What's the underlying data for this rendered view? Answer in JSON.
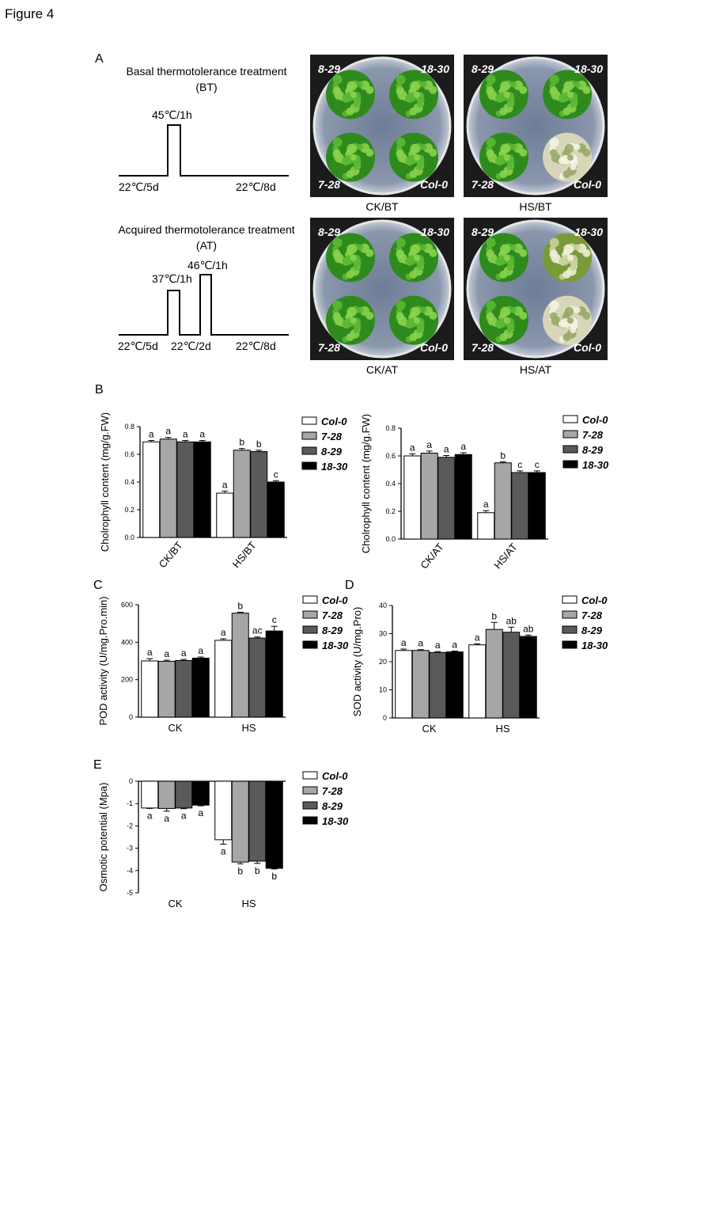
{
  "figure_title": "Figure 4",
  "panel_a": {
    "letter": "A",
    "bt": {
      "title_line1": "Basal thermotolerance treatment",
      "title_line2": "(BT)",
      "pulse_label": "45℃/1h",
      "pre_label": "22℃/5d",
      "post_label": "22℃/8d"
    },
    "at": {
      "title_line1": "Acquired thermotolerance treatment",
      "title_line2": "(AT)",
      "pulse1_label": "37℃/1h",
      "pulse2_label": "46℃/1h",
      "pre_label": "22℃/5d",
      "mid_label": "22℃/2d",
      "post_label": "22℃/8d"
    },
    "plates": [
      {
        "caption": "CK/BT",
        "tl": "8-29",
        "tr": "18-30",
        "bl": "7-28",
        "br": "Col-0",
        "status": [
          "healthy",
          "healthy",
          "healthy",
          "healthy"
        ]
      },
      {
        "caption": "HS/BT",
        "tl": "8-29",
        "tr": "18-30",
        "bl": "7-28",
        "br": "Col-0",
        "status": [
          "healthy",
          "healthy",
          "healthy",
          "bleached"
        ]
      },
      {
        "caption": "CK/AT",
        "tl": "8-29",
        "tr": "18-30",
        "bl": "7-28",
        "br": "Col-0",
        "status": [
          "healthy",
          "healthy",
          "healthy",
          "healthy"
        ]
      },
      {
        "caption": "HS/AT",
        "tl": "8-29",
        "tr": "18-30",
        "bl": "7-28",
        "br": "Col-0",
        "status": [
          "healthy",
          "partial",
          "healthy",
          "bleached"
        ]
      }
    ]
  },
  "legend": {
    "entries": [
      "Col-0",
      "7-28",
      "8-29",
      "18-30"
    ],
    "colors": [
      "#ffffff",
      "#a6a6a6",
      "#5a5a5a",
      "#000000"
    ]
  },
  "chart_data": [
    {
      "panel": "B",
      "type": "bar",
      "ylabel": "Cholrophyll content (mg/g.FW)",
      "categories": [
        "CK/BT",
        "HS/BT"
      ],
      "ylim": [
        0,
        0.8
      ],
      "yticks": [
        "0.0",
        "0.2",
        "0.4",
        "0.6",
        "0.8"
      ],
      "rotate_xticks": true,
      "series": [
        {
          "name": "Col-0",
          "values": [
            0.69,
            0.32
          ],
          "err": [
            0.01,
            0.015
          ],
          "letters": [
            "a",
            "a"
          ]
        },
        {
          "name": "7-28",
          "values": [
            0.71,
            0.63
          ],
          "err": [
            0.012,
            0.012
          ],
          "letters": [
            "a",
            "b"
          ]
        },
        {
          "name": "8-29",
          "values": [
            0.69,
            0.62
          ],
          "err": [
            0.01,
            0.01
          ],
          "letters": [
            "a",
            "b"
          ]
        },
        {
          "name": "18-30",
          "values": [
            0.69,
            0.4
          ],
          "err": [
            0.01,
            0.01
          ],
          "letters": [
            "a",
            "c"
          ]
        }
      ]
    },
    {
      "panel": "",
      "type": "bar",
      "ylabel": "Cholrophyll content (mg/g.FW)",
      "categories": [
        "CK/AT",
        "HS/AT"
      ],
      "ylim": [
        0,
        0.8
      ],
      "yticks": [
        "0.0",
        "0.2",
        "0.4",
        "0.6",
        "0.8"
      ],
      "rotate_xticks": true,
      "series": [
        {
          "name": "Col-0",
          "values": [
            0.6,
            0.19
          ],
          "err": [
            0.015,
            0.015
          ],
          "letters": [
            "a",
            "a"
          ]
        },
        {
          "name": "7-28",
          "values": [
            0.62,
            0.55
          ],
          "err": [
            0.015,
            0.008
          ],
          "letters": [
            "a",
            "b"
          ]
        },
        {
          "name": "8-29",
          "values": [
            0.59,
            0.48
          ],
          "err": [
            0.013,
            0.012
          ],
          "letters": [
            "a",
            "c"
          ]
        },
        {
          "name": "18-30",
          "values": [
            0.61,
            0.48
          ],
          "err": [
            0.013,
            0.012
          ],
          "letters": [
            "a",
            "c"
          ]
        }
      ]
    },
    {
      "panel": "C",
      "type": "bar",
      "ylabel": "POD activity (U/mg.Pro.min)",
      "categories": [
        "CK",
        "HS"
      ],
      "ylim": [
        0,
        600
      ],
      "yticks": [
        "0",
        "200",
        "400",
        "600"
      ],
      "rotate_xticks": false,
      "series": [
        {
          "name": "Col-0",
          "values": [
            300,
            410
          ],
          "err": [
            12,
            8
          ],
          "letters": [
            "a",
            "a"
          ]
        },
        {
          "name": "7-28",
          "values": [
            298,
            555
          ],
          "err": [
            6,
            5
          ],
          "letters": [
            "a",
            "b"
          ]
        },
        {
          "name": "8-29",
          "values": [
            302,
            422
          ],
          "err": [
            6,
            6
          ],
          "letters": [
            "a",
            "ac"
          ]
        },
        {
          "name": "18-30",
          "values": [
            315,
            460
          ],
          "err": [
            6,
            25
          ],
          "letters": [
            "a",
            "c"
          ]
        }
      ]
    },
    {
      "panel": "D",
      "type": "bar",
      "ylabel": "SOD activity (U/mg.Pro)",
      "categories": [
        "CK",
        "HS"
      ],
      "ylim": [
        0,
        40
      ],
      "yticks": [
        "0",
        "10",
        "20",
        "30",
        "40"
      ],
      "rotate_xticks": false,
      "series": [
        {
          "name": "Col-0",
          "values": [
            24,
            26
          ],
          "err": [
            0.5,
            0.4
          ],
          "letters": [
            "a",
            "a"
          ]
        },
        {
          "name": "7-28",
          "values": [
            24,
            31.5
          ],
          "err": [
            0.3,
            2.5
          ],
          "letters": [
            "a",
            "b"
          ]
        },
        {
          "name": "8-29",
          "values": [
            23.3,
            30.5
          ],
          "err": [
            0.3,
            1.8
          ],
          "letters": [
            "a",
            "ab"
          ]
        },
        {
          "name": "18-30",
          "values": [
            23.5,
            29
          ],
          "err": [
            0.3,
            0.5
          ],
          "letters": [
            "a",
            "ab"
          ]
        }
      ]
    },
    {
      "panel": "E",
      "type": "bar",
      "ylabel": "Osmotic potential (Mpa)",
      "categories": [
        "CK",
        "HS"
      ],
      "ylim": [
        -5,
        0
      ],
      "yticks": [
        "-5",
        "-4",
        "-3",
        "-2",
        "-1",
        "0"
      ],
      "rotate_xticks": false,
      "negative": true,
      "series": [
        {
          "name": "Col-0",
          "values": [
            -1.2,
            -2.62
          ],
          "err": [
            0.02,
            0.2
          ],
          "letters": [
            "a",
            "a"
          ]
        },
        {
          "name": "7-28",
          "values": [
            -1.22,
            -3.62
          ],
          "err": [
            0.12,
            0.08
          ],
          "letters": [
            "a",
            "b"
          ]
        },
        {
          "name": "8-29",
          "values": [
            -1.2,
            -3.58
          ],
          "err": [
            0.03,
            0.1
          ],
          "letters": [
            "a",
            "b"
          ]
        },
        {
          "name": "18-30",
          "values": [
            -1.07,
            -3.9
          ],
          "err": [
            0.03,
            0.03
          ],
          "letters": [
            "a",
            "b"
          ]
        }
      ]
    }
  ]
}
